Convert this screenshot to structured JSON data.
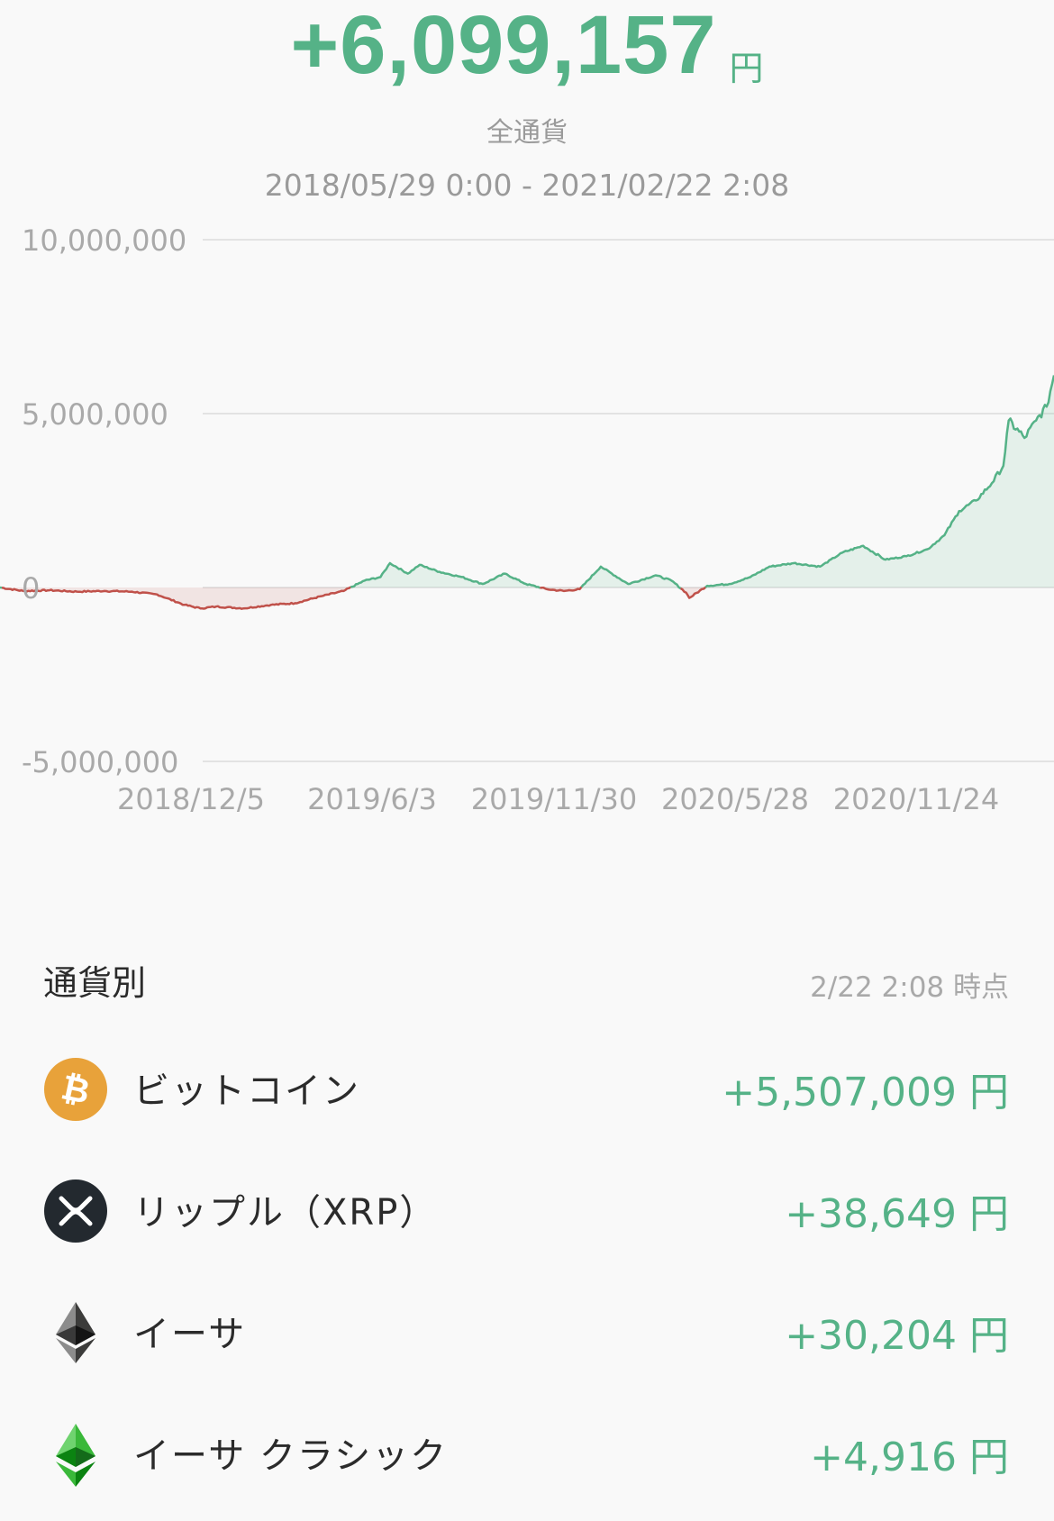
{
  "summary": {
    "total_amount": "+6,099,157",
    "unit": "円",
    "currency_scope": "全通貨",
    "date_range": "2018/05/29 0:00 - 2021/02/22 2:08"
  },
  "colors": {
    "positive": "#55b287",
    "negative": "#c0514a",
    "grid": "#e3e3e3",
    "bitcoin": "#e8a23a",
    "xrp": "#23292f",
    "eth_gray": "#6f6f6f",
    "etc_green": "#3ab83a"
  },
  "chart_data": {
    "type": "area",
    "ylim": [
      -5000000,
      10000000
    ],
    "y_ticks": [
      "10,000,000",
      "5,000,000",
      "0",
      "-5,000,000"
    ],
    "y_tick_values": [
      10000000,
      5000000,
      0,
      -5000000
    ],
    "x_ticks": [
      "2018/12/5",
      "2019/6/3",
      "2019/11/30",
      "2020/5/28",
      "2020/11/24"
    ],
    "xlim": [
      "2018-05-29",
      "2021-02-22"
    ],
    "grid": true,
    "series": [
      {
        "x": [
          "2018-05-29",
          "2018-06-20",
          "2018-07-15",
          "2018-08-10",
          "2018-09-05",
          "2018-10-01",
          "2018-10-25",
          "2018-11-20",
          "2018-12-05",
          "2018-12-20",
          "2019-01-15",
          "2019-02-10",
          "2019-03-05",
          "2019-03-30",
          "2019-04-20",
          "2019-05-10",
          "2019-05-25",
          "2019-06-03",
          "2019-06-20",
          "2019-07-01",
          "2019-07-20",
          "2019-08-10",
          "2019-08-30",
          "2019-09-20",
          "2019-10-10",
          "2019-10-30",
          "2019-11-15",
          "2019-11-30",
          "2019-12-20",
          "2020-01-15",
          "2020-02-10",
          "2020-02-25",
          "2020-03-10",
          "2020-03-13",
          "2020-03-30",
          "2020-04-20",
          "2020-05-10",
          "2020-05-28",
          "2020-06-20",
          "2020-07-15",
          "2020-08-05",
          "2020-08-25",
          "2020-09-15",
          "2020-10-05",
          "2020-10-25",
          "2020-11-10",
          "2020-11-24",
          "2020-12-10",
          "2020-12-25",
          "2021-01-05",
          "2021-01-10",
          "2021-01-25",
          "2021-02-05",
          "2021-02-15",
          "2021-02-22"
        ],
        "y": [
          0,
          -100000,
          -80000,
          -120000,
          -100000,
          -120000,
          -200000,
          -500000,
          -600000,
          -550000,
          -600000,
          -500000,
          -450000,
          -250000,
          -100000,
          200000,
          300000,
          700000,
          400000,
          650000,
          450000,
          300000,
          100000,
          400000,
          100000,
          -50000,
          -100000,
          -50000,
          600000,
          100000,
          350000,
          200000,
          -150000,
          -300000,
          50000,
          100000,
          300000,
          600000,
          700000,
          600000,
          1000000,
          1200000,
          800000,
          900000,
          1100000,
          1500000,
          2200000,
          2500000,
          3000000,
          3500000,
          4800000,
          4300000,
          4800000,
          5200000,
          6100000
        ]
      }
    ]
  },
  "by_currency": {
    "title": "通貨別",
    "as_of": "2/22 2:08 時点",
    "items": [
      {
        "name": "ビットコイン",
        "value": "+5,507,009 円",
        "icon": "bitcoin-icon"
      },
      {
        "name": "リップル（XRP）",
        "value": "+38,649 円",
        "icon": "xrp-icon"
      },
      {
        "name": "イーサ",
        "value": "+30,204 円",
        "icon": "ethereum-icon"
      },
      {
        "name": "イーサ クラシック",
        "value": "+4,916 円",
        "icon": "ethereum-classic-icon"
      }
    ]
  }
}
